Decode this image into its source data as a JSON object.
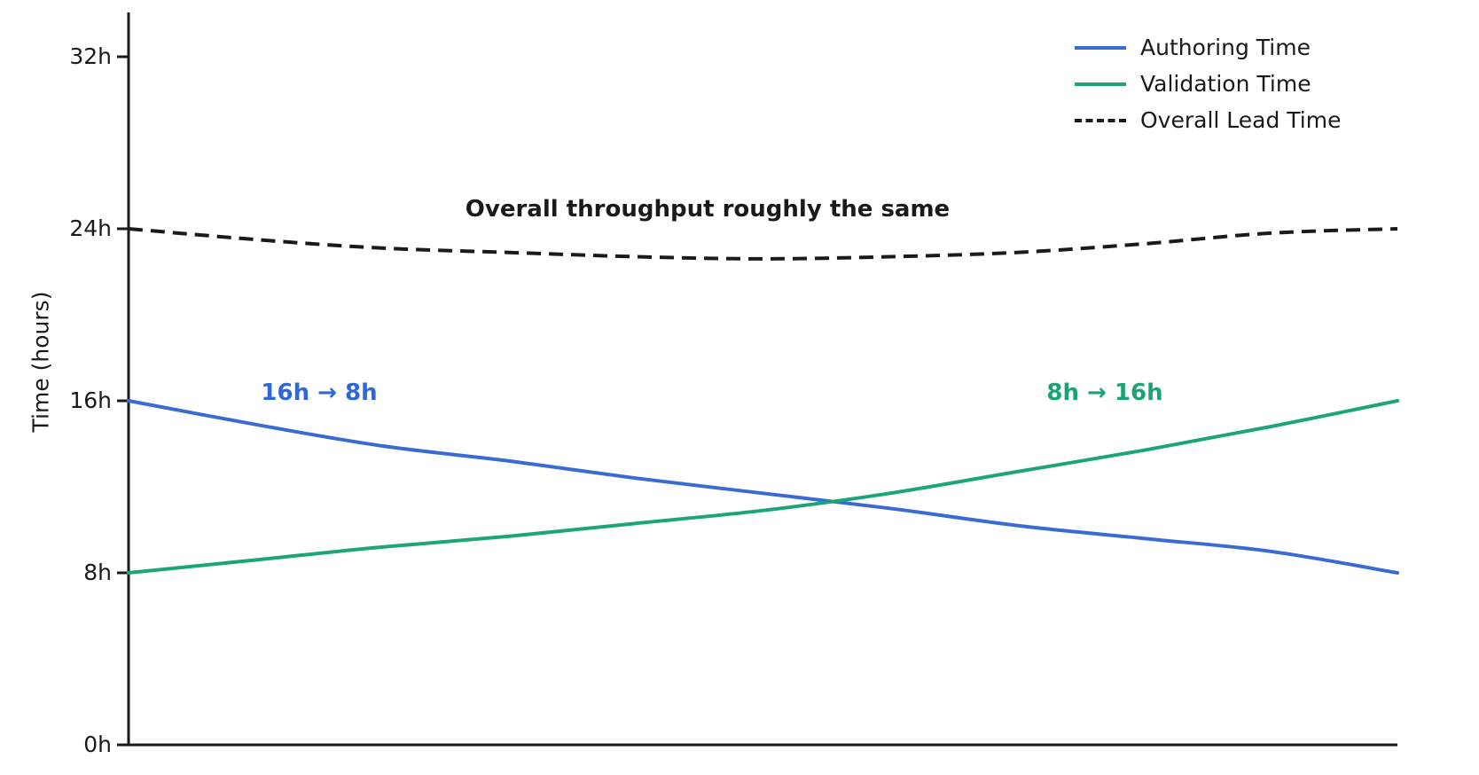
{
  "figure": {
    "background": "#ffffff",
    "axis_color": "#1a1a1a"
  },
  "y_axis": {
    "title": "Time (hours)",
    "ticks": [
      "0h",
      "8h",
      "16h",
      "24h",
      "32h"
    ],
    "tick_values": [
      0,
      8,
      16,
      24,
      32
    ]
  },
  "legend": {
    "items": [
      {
        "label": "Authoring Time",
        "color": "#3a6bd0",
        "dash": false
      },
      {
        "label": "Validation Time",
        "color": "#1da47a",
        "dash": false
      },
      {
        "label": "Overall Lead Time",
        "color": "#1a1a1a",
        "dash": true
      }
    ]
  },
  "annotations": {
    "title": "Overall throughput roughly the same",
    "authoring_change": "16h → 8h",
    "authoring_color": "#2d68d6",
    "validation_change": "8h → 16h",
    "validation_color": "#1aa374"
  },
  "chart_data": {
    "type": "line",
    "x": [
      0,
      1,
      2,
      3,
      4,
      5,
      6,
      7,
      8,
      9,
      10
    ],
    "series": [
      {
        "name": "Authoring Time",
        "color": "#3a6bd0",
        "style": "solid",
        "values": [
          16.0,
          14.9,
          13.9,
          13.2,
          12.4,
          11.7,
          11.0,
          10.2,
          9.6,
          9.0,
          8.0
        ]
      },
      {
        "name": "Validation Time",
        "color": "#1da47a",
        "style": "solid",
        "values": [
          8.0,
          8.6,
          9.2,
          9.7,
          10.3,
          10.9,
          11.7,
          12.7,
          13.7,
          14.8,
          16.0
        ]
      },
      {
        "name": "Overall Lead Time",
        "color": "#1a1a1a",
        "style": "dashed",
        "values": [
          24.0,
          23.5,
          23.1,
          22.9,
          22.7,
          22.6,
          22.7,
          22.9,
          23.3,
          23.8,
          24.0
        ]
      }
    ],
    "ylabel": "Time (hours)",
    "ylim": [
      0,
      34
    ],
    "xlabel": "",
    "x_tick_labels": [],
    "grid": false,
    "legend_position": "upper right"
  }
}
